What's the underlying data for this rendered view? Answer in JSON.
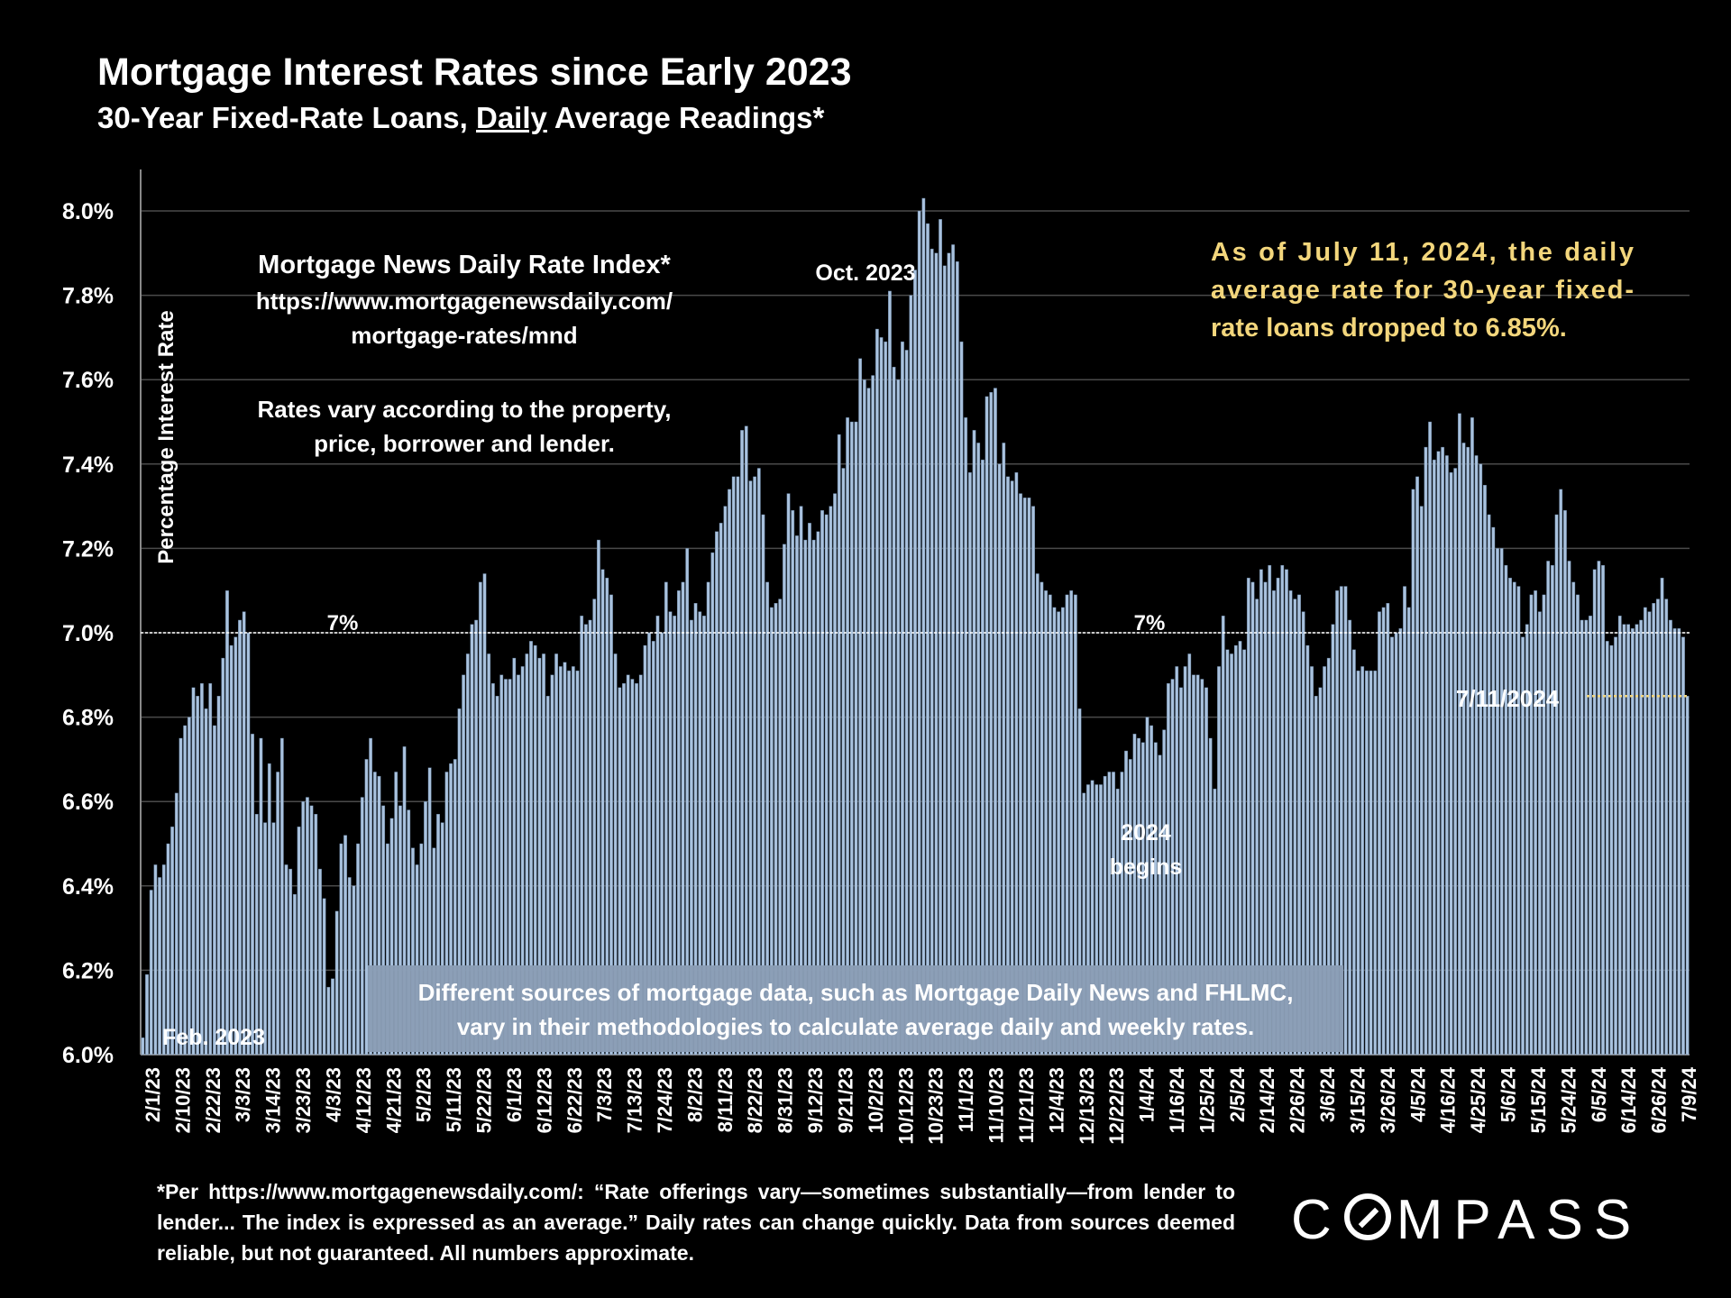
{
  "header": {
    "title": "Mortgage Interest Rates since Early 2023",
    "subtitle_pre": "30-Year Fixed-Rate Loans, ",
    "subtitle_underline": "Daily",
    "subtitle_post": " Average Readings*"
  },
  "chart_data": {
    "type": "bar",
    "ylabel": "Percentage Interest Rate",
    "ylim": [
      6.0,
      8.05
    ],
    "yticks": [
      "8.0%",
      "7.8%",
      "7.6%",
      "7.4%",
      "7.2%",
      "7.0%",
      "6.8%",
      "6.6%",
      "6.4%",
      "6.2%",
      "6.0%"
    ],
    "ytick_values": [
      8.0,
      7.8,
      7.6,
      7.4,
      7.2,
      7.0,
      6.8,
      6.6,
      6.4,
      6.2,
      6.0
    ],
    "xtick_labels": [
      "2/1/23",
      "2/10/23",
      "2/22/23",
      "3/3/23",
      "3/14/23",
      "3/23/23",
      "4/3/23",
      "4/12/23",
      "4/21/23",
      "5/2/23",
      "5/11/23",
      "5/22/23",
      "6/1/23",
      "6/12/23",
      "6/22/23",
      "7/3/23",
      "7/13/23",
      "7/24/23",
      "8/2/23",
      "8/11/23",
      "8/22/23",
      "8/31/23",
      "9/12/23",
      "9/21/23",
      "10/2/23",
      "10/12/23",
      "10/23/23",
      "11/1/23",
      "11/10/23",
      "11/21/23",
      "12/4/23",
      "12/13/23",
      "12/22/23",
      "1/4/24",
      "1/16/24",
      "1/25/24",
      "2/5/24",
      "2/14/24",
      "2/26/24",
      "3/6/24",
      "3/15/24",
      "3/26/24",
      "4/5/24",
      "4/16/24",
      "4/25/24",
      "5/6/24",
      "5/15/24",
      "5/24/24",
      "6/5/24",
      "6/14/24",
      "6/26/24",
      "7/9/24"
    ],
    "series": [
      {
        "name": "30-Year Fixed Daily Rate",
        "values": [
          6.04,
          6.19,
          6.39,
          6.45,
          6.42,
          6.45,
          6.5,
          6.54,
          6.62,
          6.75,
          6.78,
          6.8,
          6.87,
          6.85,
          6.88,
          6.82,
          6.88,
          6.78,
          6.85,
          6.94,
          7.1,
          6.97,
          6.99,
          7.03,
          7.05,
          7.0,
          6.76,
          6.57,
          6.75,
          6.55,
          6.69,
          6.55,
          6.67,
          6.75,
          6.45,
          6.44,
          6.38,
          6.54,
          6.6,
          6.61,
          6.59,
          6.57,
          6.44,
          6.37,
          6.16,
          6.18,
          6.34,
          6.5,
          6.52,
          6.42,
          6.4,
          6.5,
          6.61,
          6.7,
          6.75,
          6.67,
          6.66,
          6.59,
          6.5,
          6.56,
          6.67,
          6.59,
          6.73,
          6.58,
          6.49,
          6.45,
          6.5,
          6.6,
          6.68,
          6.49,
          6.57,
          6.55,
          6.67,
          6.69,
          6.7,
          6.82,
          6.9,
          6.95,
          7.02,
          7.03,
          7.12,
          7.14,
          6.95,
          6.88,
          6.85,
          6.9,
          6.89,
          6.89,
          6.94,
          6.9,
          6.92,
          6.95,
          6.98,
          6.97,
          6.94,
          6.95,
          6.85,
          6.9,
          6.95,
          6.92,
          6.93,
          6.91,
          6.92,
          6.91,
          7.04,
          7.02,
          7.03,
          7.08,
          7.22,
          7.15,
          7.13,
          7.09,
          6.95,
          6.87,
          6.88,
          6.9,
          6.89,
          6.88,
          6.9,
          6.97,
          7.0,
          6.98,
          7.04,
          7.0,
          7.12,
          7.05,
          7.04,
          7.1,
          7.12,
          7.2,
          7.03,
          7.07,
          7.05,
          7.04,
          7.12,
          7.19,
          7.24,
          7.26,
          7.3,
          7.34,
          7.37,
          7.37,
          7.48,
          7.49,
          7.36,
          7.37,
          7.39,
          7.28,
          7.12,
          7.06,
          7.07,
          7.08,
          7.21,
          7.33,
          7.29,
          7.23,
          7.3,
          7.22,
          7.26,
          7.22,
          7.24,
          7.29,
          7.28,
          7.3,
          7.33,
          7.47,
          7.39,
          7.51,
          7.5,
          7.5,
          7.65,
          7.6,
          7.58,
          7.61,
          7.72,
          7.7,
          7.69,
          7.81,
          7.63,
          7.6,
          7.69,
          7.67,
          7.8,
          7.86,
          8.0,
          8.03,
          7.97,
          7.91,
          7.9,
          7.98,
          7.87,
          7.9,
          7.92,
          7.88,
          7.69,
          7.51,
          7.38,
          7.48,
          7.45,
          7.41,
          7.56,
          7.57,
          7.58,
          7.4,
          7.45,
          7.37,
          7.36,
          7.38,
          7.33,
          7.32,
          7.32,
          7.3,
          7.14,
          7.12,
          7.1,
          7.09,
          7.06,
          7.05,
          7.06,
          7.09,
          7.1,
          7.09,
          6.82,
          6.62,
          6.64,
          6.65,
          6.64,
          6.64,
          6.66,
          6.67,
          6.67,
          6.63,
          6.67,
          6.72,
          6.7,
          6.76,
          6.75,
          6.74,
          6.8,
          6.78,
          6.74,
          6.71,
          6.77,
          6.88,
          6.89,
          6.92,
          6.87,
          6.92,
          6.95,
          6.9,
          6.9,
          6.89,
          6.87,
          6.75,
          6.63,
          6.92,
          7.04,
          6.96,
          6.95,
          6.97,
          6.98,
          6.96,
          7.13,
          7.12,
          7.08,
          7.15,
          7.12,
          7.16,
          7.1,
          7.13,
          7.16,
          7.15,
          7.1,
          7.08,
          7.09,
          7.05,
          6.97,
          6.92,
          6.85,
          6.87,
          6.92,
          6.94,
          7.02,
          7.1,
          7.11,
          7.11,
          7.03,
          6.96,
          6.91,
          6.92,
          6.91,
          6.91,
          6.91,
          7.05,
          7.06,
          7.07,
          6.99,
          7.0,
          7.01,
          7.11,
          7.06,
          7.34,
          7.37,
          7.3,
          7.44,
          7.5,
          7.41,
          7.43,
          7.44,
          7.42,
          7.38,
          7.39,
          7.52,
          7.45,
          7.44,
          7.51,
          7.42,
          7.4,
          7.35,
          7.28,
          7.25,
          7.2,
          7.2,
          7.16,
          7.13,
          7.12,
          7.11,
          6.99,
          7.02,
          7.09,
          7.1,
          7.05,
          7.09,
          7.17,
          7.16,
          7.28,
          7.34,
          7.29,
          7.17,
          7.12,
          7.09,
          7.03,
          7.03,
          7.04,
          7.15,
          7.17,
          7.16,
          6.98,
          6.97,
          6.99,
          7.04,
          7.02,
          7.02,
          7.01,
          7.02,
          7.03,
          7.06,
          7.05,
          7.07,
          7.08,
          7.13,
          7.08,
          7.03,
          7.01,
          7.01,
          6.99,
          6.85
        ]
      }
    ],
    "reference_line": {
      "value": 7.0,
      "labels": [
        "7%",
        "7%"
      ]
    },
    "annotations": {
      "index_title": "Mortgage News Daily Rate Index*",
      "index_url_1": "https://www.mortgagenewsdaily.com/",
      "index_url_2": "mortgage-rates/mnd",
      "note_1": "Rates vary according to the property,",
      "note_2": "price, borrower and lender.",
      "peak_label": "Oct. 2023",
      "start_label": "Feb. 2023",
      "year_label_1": "2024",
      "year_label_2": "begins",
      "latest_label": "7/11/2024",
      "latest_value": 6.85,
      "callout_1": "As  of  July  11,  2024,  the  daily",
      "callout_2": "average  rate  for  30-year  fixed-",
      "callout_3": "rate loans dropped to 6.85%.",
      "box_1": "Different sources of mortgage data, such as Mortgage Daily News and FHLMC,",
      "box_2": "vary in their methodologies to calculate average daily and weekly rates."
    },
    "colors": {
      "bar": "#a9c2de",
      "bar_edge": "#5d7795",
      "grid": "#4a4a4a",
      "ref": "#ffffff",
      "callout": "#f3d67c",
      "latest_line": "#f3d67c",
      "box": "#8a9db5"
    }
  },
  "footnote": "*Per https://www.mortgagenewsdaily.com/: “Rate offerings vary—sometimes substantially—from lender to lender... The index is expressed as an average.” Daily rates can change quickly. Data from sources deemed reliable, but not guaranteed. All numbers approximate.",
  "logo": {
    "part1": "C",
    "part2": "MPASS"
  }
}
